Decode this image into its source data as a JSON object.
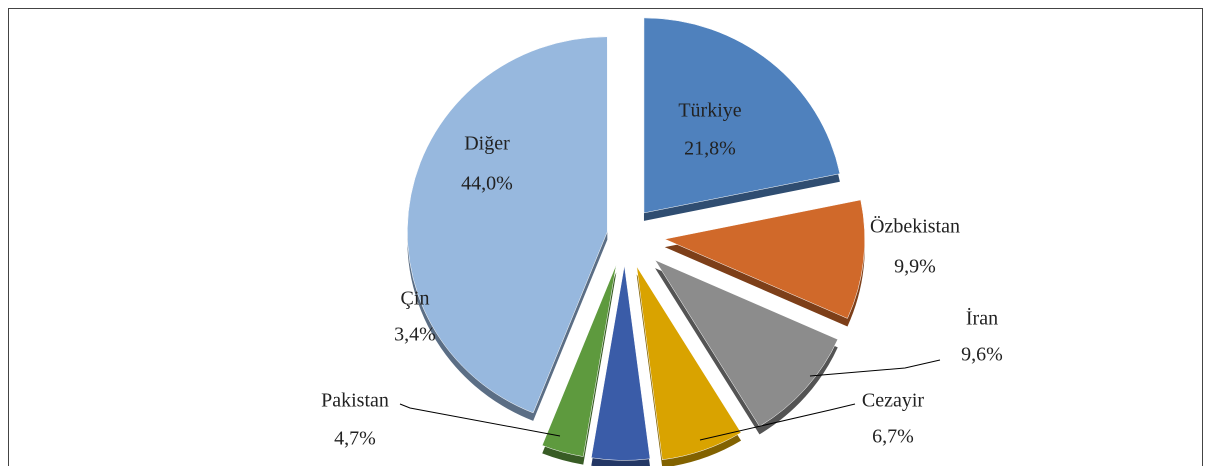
{
  "chart_data": {
    "type": "pie",
    "categories": [
      "Türkiye",
      "Özbekistan",
      "İran",
      "Cezayir",
      "Pakistan",
      "Çin",
      "Diğer"
    ],
    "values": [
      21.8,
      9.9,
      9.6,
      6.7,
      4.7,
      3.4,
      44.0
    ],
    "value_labels": [
      "21,8%",
      "9,9%",
      "9,6%",
      "6,7%",
      "4,7%",
      "3,4%",
      "44,0%"
    ],
    "colors": [
      "#4f81bd",
      "#d0692a",
      "#8c8c8c",
      "#d9a300",
      "#3a5ca8",
      "#5e9a3e",
      "#97b8de"
    ]
  }
}
